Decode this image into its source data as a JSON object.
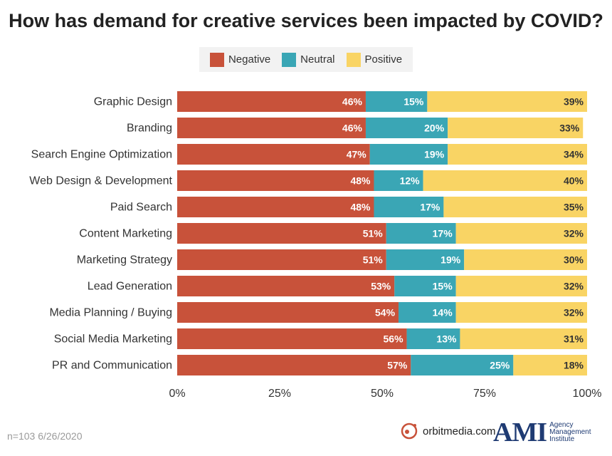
{
  "chart_data": {
    "type": "bar",
    "orientation": "horizontal",
    "stacked": true,
    "title": "How has demand for creative services been impacted by COVID?",
    "categories": [
      "Graphic Design",
      "Branding",
      "Search Engine Optimization",
      "Web Design & Development",
      "Paid Search",
      "Content Marketing",
      "Marketing Strategy",
      "Lead Generation",
      "Media Planning / Buying",
      "Social Media Marketing",
      "PR and Communication"
    ],
    "series": [
      {
        "name": "Negative",
        "color": "#c8523a",
        "values": [
          46,
          46,
          47,
          48,
          48,
          51,
          51,
          53,
          54,
          56,
          57
        ]
      },
      {
        "name": "Neutral",
        "color": "#3aa6b5",
        "values": [
          15,
          20,
          19,
          12,
          17,
          17,
          19,
          15,
          14,
          13,
          25
        ]
      },
      {
        "name": "Positive",
        "color": "#f9d464",
        "values": [
          39,
          33,
          34,
          40,
          35,
          32,
          30,
          32,
          32,
          31,
          18
        ]
      }
    ],
    "xlim": [
      0,
      100
    ],
    "xticks": [
      "0%",
      "25%",
      "50%",
      "75%",
      "100%"
    ],
    "legend_position": "top-center",
    "grid": false,
    "value_suffix": "%"
  },
  "footnote": "n=103 6/26/2020",
  "logos": {
    "orbit": "orbitmedia.com",
    "ami": "AMI",
    "ami_sub": [
      "Agency",
      "Management",
      "Institute"
    ]
  }
}
